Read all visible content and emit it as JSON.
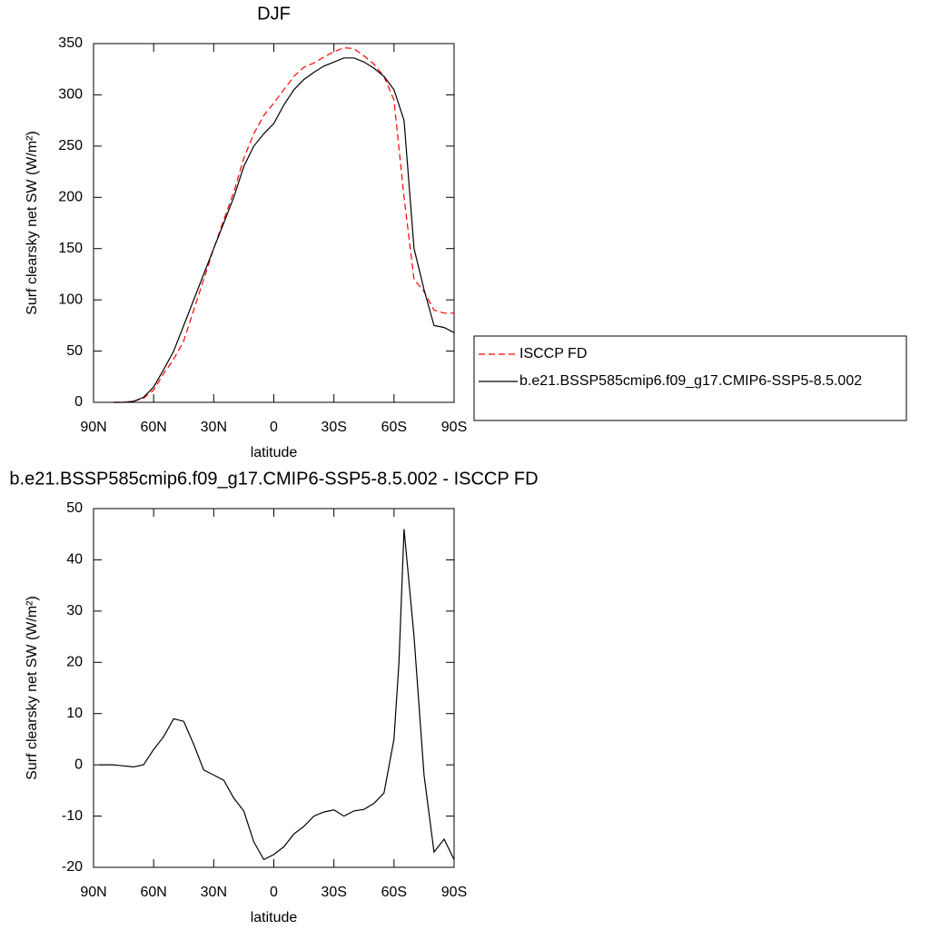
{
  "chart_data": [
    {
      "type": "line",
      "title": "DJF",
      "xlabel": "latitude",
      "ylabel": "Surf clearsky net SW (W/m²)",
      "x": [
        80,
        75,
        70,
        65,
        60,
        55,
        50,
        45,
        40,
        35,
        30,
        25,
        20,
        15,
        10,
        5,
        0,
        -5,
        -10,
        -15,
        -20,
        -25,
        -30,
        -35,
        -40,
        -45,
        -50,
        -55,
        -60,
        -65,
        -70,
        -75,
        -80,
        -85,
        -90
      ],
      "series": [
        {
          "name": "ISCCP FD",
          "color": "#ff0000",
          "dash": true,
          "values": [
            0,
            0,
            1,
            4,
            12,
            28,
            42,
            60,
            90,
            120,
            150,
            178,
            205,
            238,
            262,
            280,
            292,
            305,
            318,
            327,
            331,
            337,
            342,
            346,
            345,
            338,
            330,
            318,
            295,
            200,
            120,
            108,
            90,
            87,
            87
          ]
        },
        {
          "name": "b.e21.BSSP585cmip6.f09_g17.CMIP6-SSP5-8.5.002",
          "color": "#000000",
          "dash": false,
          "values": [
            0,
            0,
            1,
            5,
            15,
            32,
            50,
            75,
            100,
            125,
            150,
            175,
            200,
            230,
            250,
            262,
            272,
            290,
            305,
            315,
            322,
            328,
            332,
            336,
            336,
            332,
            326,
            318,
            305,
            275,
            150,
            110,
            75,
            73,
            68
          ]
        }
      ],
      "xlim": [
        90,
        -90
      ],
      "xticks": [
        {
          "value": 90,
          "label": "90N"
        },
        {
          "value": 60,
          "label": "60N"
        },
        {
          "value": 30,
          "label": "30N"
        },
        0,
        {
          "value": -30,
          "label": "30S"
        },
        {
          "value": -60,
          "label": "60S"
        },
        {
          "value": -90,
          "label": "90S"
        }
      ],
      "ylim": [
        0,
        350
      ],
      "yticks": [
        0,
        50,
        100,
        150,
        200,
        250,
        300,
        350
      ],
      "legend": "right"
    },
    {
      "type": "line",
      "title": "b.e21.BSSP585cmip6.f09_g17.CMIP6-SSP5-8.5.002 - ISCCP FD",
      "xlabel": "latitude",
      "ylabel": "Surf clearsky net SW (W/m²)",
      "x": [
        87,
        80,
        75,
        70,
        65,
        60,
        55,
        50,
        45,
        40,
        35,
        30,
        25,
        20,
        15,
        10,
        5,
        0,
        -5,
        -10,
        -15,
        -20,
        -25,
        -30,
        -35,
        -40,
        -45,
        -50,
        -55,
        -60,
        -62.5,
        -65,
        -70,
        -75,
        -80,
        -85,
        -90
      ],
      "series": [
        {
          "color": "#000000",
          "dash": false,
          "values": [
            0,
            0,
            -0.2,
            -0.4,
            0,
            3,
            5.5,
            9,
            8.5,
            4,
            -1,
            -2,
            -3,
            -6.5,
            -9,
            -15,
            -18.5,
            -17.5,
            -16,
            -13.5,
            -12,
            -10,
            -9.2,
            -8.8,
            -10,
            -9,
            -8.7,
            -7.5,
            -5.5,
            5,
            20,
            46,
            25,
            -2,
            -17,
            -14.5,
            -18.5
          ]
        }
      ],
      "xlim": [
        90,
        -90
      ],
      "xticks": [
        {
          "value": 90,
          "label": "90N"
        },
        {
          "value": 60,
          "label": "60N"
        },
        {
          "value": 30,
          "label": "30N"
        },
        0,
        {
          "value": -30,
          "label": "30S"
        },
        {
          "value": -60,
          "label": "60S"
        },
        {
          "value": -90,
          "label": "90S"
        }
      ],
      "ylim": [
        -20,
        50
      ],
      "yticks": [
        -20,
        -10,
        0,
        10,
        20,
        30,
        40,
        50
      ]
    }
  ]
}
